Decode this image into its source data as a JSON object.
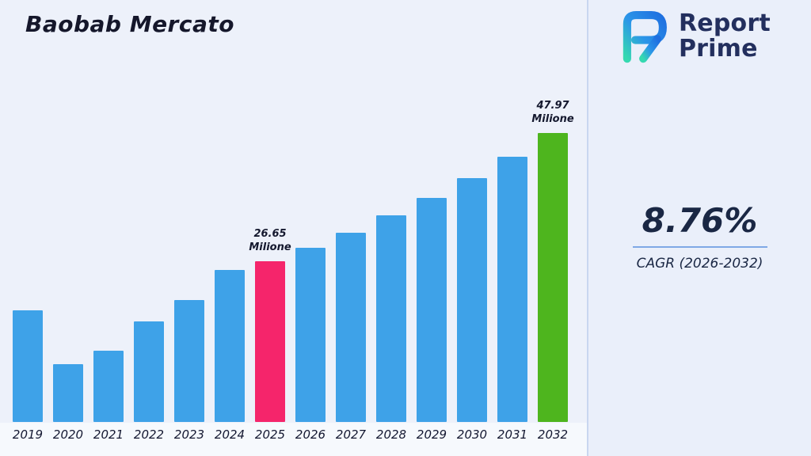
{
  "page": {
    "background": "#edf1fa"
  },
  "header": {
    "title": "Baobab Mercato"
  },
  "logo": {
    "line1": "Report",
    "line2": "Prime"
  },
  "stats": {
    "cagr_value": "8.76%",
    "cagr_label": "CAGR (2026-2032)"
  },
  "chart_data": {
    "type": "bar",
    "title": "Baobab Mercato",
    "categories": [
      "2019",
      "2020",
      "2021",
      "2022",
      "2023",
      "2024",
      "2025",
      "2026",
      "2027",
      "2028",
      "2029",
      "2030",
      "2031",
      "2032"
    ],
    "values": [
      18.6,
      9.6,
      11.9,
      16.7,
      20.3,
      25.3,
      26.65,
      29.0,
      31.5,
      34.3,
      37.3,
      40.5,
      44.1,
      47.97
    ],
    "unit": "Milione",
    "xlabel": "",
    "ylabel": "",
    "ylim": [
      0,
      50
    ],
    "grid": false,
    "legend": false,
    "bar_color_default": "#3ea2e8",
    "highlighted_bars": [
      {
        "category": "2025",
        "color": "#f5256b",
        "label_lines": [
          "26.65",
          "Milione"
        ]
      },
      {
        "category": "2032",
        "color": "#4eb51e",
        "label_lines": [
          "47.97",
          "Milione"
        ]
      }
    ]
  }
}
